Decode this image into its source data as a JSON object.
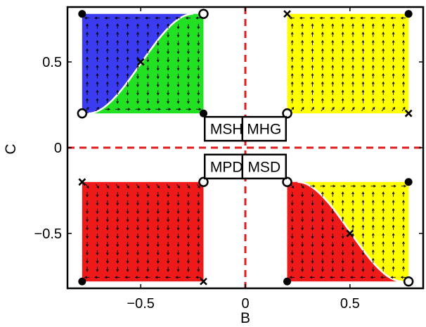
{
  "chart_data": {
    "type": "phase_diagram",
    "xlabel": "B",
    "ylabel": "C",
    "xlim": [
      -0.85,
      0.85
    ],
    "ylim": [
      -0.82,
      0.82
    ],
    "x_ticks": [
      -0.5,
      0,
      0.5
    ],
    "x_tick_labels": [
      "−0.5",
      "0",
      "0.5"
    ],
    "y_ticks": [
      -0.5,
      0,
      0.5
    ],
    "y_tick_labels": [
      "−0.5",
      "0",
      "0.5"
    ],
    "reference_lines": {
      "x": 0,
      "y": 0,
      "color": "#e01b1b",
      "style": "dashed"
    },
    "colors": {
      "blue": "#3b3bf0",
      "green": "#22e022",
      "yellow": "#ffff00",
      "red": "#ee1a1a"
    },
    "quadrant_range": {
      "inner": 0.2,
      "outer": 0.78
    },
    "region_labels": [
      {
        "text": "MSH",
        "quadrant": "upper-left"
      },
      {
        "text": "MHG",
        "quadrant": "upper-right"
      },
      {
        "text": "MPD",
        "quadrant": "lower-left"
      },
      {
        "text": "MSD",
        "quadrant": "lower-right"
      }
    ],
    "quadrants": [
      {
        "name": "upper-left",
        "b": [
          -0.78,
          -0.2
        ],
        "c": [
          0.2,
          0.78
        ],
        "regions": [
          {
            "color": "blue",
            "curve": true,
            "side": "left"
          },
          {
            "color": "green",
            "curve": true,
            "side": "right"
          }
        ],
        "curve": {
          "from": [
            -0.75,
            0.2
          ],
          "to": [
            -0.25,
            0.78
          ]
        },
        "markers": [
          {
            "b": -0.78,
            "c": 0.78,
            "type": "dot"
          },
          {
            "b": -0.2,
            "c": 0.78,
            "type": "circle"
          },
          {
            "b": -0.78,
            "c": 0.2,
            "type": "circle"
          },
          {
            "b": -0.2,
            "c": 0.2,
            "type": "dot"
          },
          {
            "b": -0.5,
            "c": 0.5,
            "type": "cross"
          }
        ]
      },
      {
        "name": "upper-right",
        "b": [
          0.2,
          0.78
        ],
        "c": [
          0.2,
          0.78
        ],
        "regions": [
          {
            "color": "yellow"
          }
        ],
        "markers": [
          {
            "b": 0.2,
            "c": 0.78,
            "type": "cross"
          },
          {
            "b": 0.78,
            "c": 0.78,
            "type": "dot"
          },
          {
            "b": 0.2,
            "c": 0.2,
            "type": "circle"
          },
          {
            "b": 0.78,
            "c": 0.2,
            "type": "cross"
          }
        ]
      },
      {
        "name": "lower-left",
        "b": [
          -0.78,
          -0.2
        ],
        "c": [
          -0.78,
          -0.2
        ],
        "regions": [
          {
            "color": "red"
          }
        ],
        "markers": [
          {
            "b": -0.78,
            "c": -0.2,
            "type": "cross"
          },
          {
            "b": -0.2,
            "c": -0.2,
            "type": "circle"
          },
          {
            "b": -0.78,
            "c": -0.78,
            "type": "dot"
          },
          {
            "b": -0.2,
            "c": -0.78,
            "type": "cross"
          }
        ]
      },
      {
        "name": "lower-right",
        "b": [
          0.2,
          0.78
        ],
        "c": [
          -0.78,
          -0.2
        ],
        "regions": [
          {
            "color": "red",
            "curve": true,
            "side": "left"
          },
          {
            "color": "yellow",
            "curve": true,
            "side": "right"
          }
        ],
        "curve": {
          "from": [
            0.25,
            -0.2
          ],
          "to": [
            0.75,
            -0.78
          ]
        },
        "markers": [
          {
            "b": 0.2,
            "c": -0.2,
            "type": "circle"
          },
          {
            "b": 0.78,
            "c": -0.2,
            "type": "dot"
          },
          {
            "b": 0.2,
            "c": -0.78,
            "type": "dot"
          },
          {
            "b": 0.78,
            "c": -0.78,
            "type": "circle"
          },
          {
            "b": 0.5,
            "c": -0.5,
            "type": "cross"
          }
        ]
      }
    ],
    "vector_field": {
      "upper-left": {
        "blue": "up",
        "green": "down",
        "top_row": "left",
        "bottom_row": "right"
      },
      "upper-right": {
        "all": "up",
        "top_row": "left",
        "bottom_row": "right"
      },
      "lower-left": {
        "all": "down",
        "top_row": "right",
        "bottom_row": "left"
      },
      "lower-right": {
        "red": "down",
        "yellow": "up",
        "top_row": "right",
        "bottom_row": "left"
      }
    }
  }
}
